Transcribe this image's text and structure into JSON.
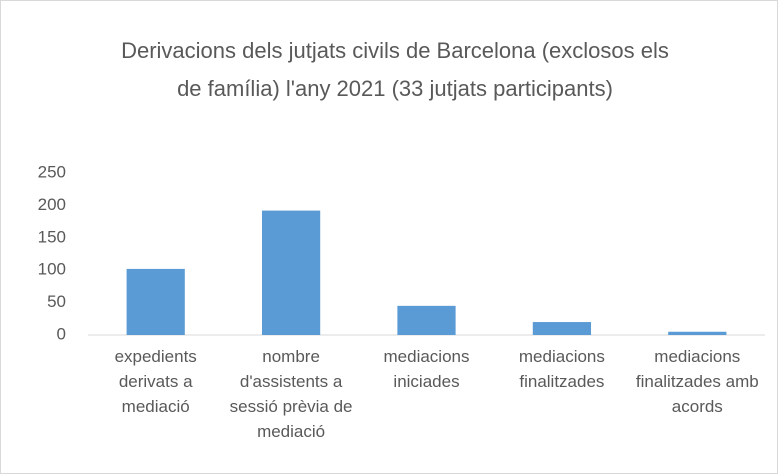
{
  "chart_data": {
    "type": "bar",
    "title": "Derivacions dels jutjats civils de Barcelona (exclosos els de família) l'any 2021 (33 jutjats participants)",
    "categories": [
      "expedients derivats a mediació",
      "nombre d'assistents a sessió prèvia de mediació",
      "mediacions iniciades",
      "mediacions finalitzades",
      "mediacions finalitzades amb acords"
    ],
    "values": [
      102,
      192,
      45,
      20,
      5
    ],
    "color": "#5b9bd5",
    "ylim": [
      0,
      250
    ],
    "yticks": [
      0,
      50,
      100,
      150,
      200,
      250
    ],
    "grid": false
  }
}
